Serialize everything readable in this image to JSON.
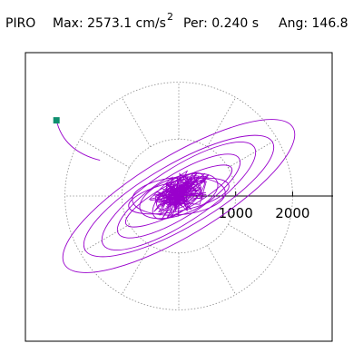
{
  "header": {
    "station": "PIRO",
    "max_text": "Max: 2573.1 cm/s",
    "max_superscript": "2",
    "period_text": "Per:  0.240 s",
    "angle_text": "Ang: 146.8"
  },
  "chart_data": {
    "type": "scatter",
    "title": "",
    "xlabel": "",
    "ylabel": "",
    "xlim": [
      -2700,
      2700
    ],
    "ylim": [
      -2700,
      2700
    ],
    "units": "cm/s2",
    "max_value": 2573.1,
    "period_s": 0.24,
    "angle_deg": 146.8,
    "radial_ticks": [
      1000,
      2000
    ],
    "radial_tick_labels": [
      "1000",
      "2000"
    ],
    "grid": true,
    "grid_spokes_deg": [
      0,
      30,
      60,
      90,
      120,
      150,
      180,
      210,
      240,
      270,
      300,
      330
    ],
    "marker_point": {
      "x": -2150,
      "y": 1330
    },
    "orbit_series": {
      "name": "",
      "ellipses": [
        {
          "a": 2340,
          "b": 700,
          "rot_deg": -31
        },
        {
          "a": 1900,
          "b": 560,
          "rot_deg": -30
        },
        {
          "a": 1580,
          "b": 480,
          "rot_deg": -33
        },
        {
          "a": 1250,
          "b": 380,
          "rot_deg": -32
        },
        {
          "a": 1050,
          "b": 260,
          "rot_deg": -28
        },
        {
          "a": 900,
          "b": 260,
          "rot_deg": -12
        },
        {
          "a": 820,
          "b": 330,
          "rot_deg": -5
        },
        {
          "a": 720,
          "b": 330,
          "rot_deg": -20
        },
        {
          "a": 560,
          "b": 250,
          "rot_deg": -40
        },
        {
          "a": 420,
          "b": 200,
          "rot_deg": -25
        },
        {
          "a": 300,
          "b": 140,
          "rot_deg": -15
        },
        {
          "a": 200,
          "b": 100,
          "rot_deg": -35
        }
      ]
    },
    "colors": {
      "orbit": "#9900cc",
      "marker": "#0f8f6f",
      "grid": "#8a8a8a",
      "axis": "#000000",
      "frame": "#000000"
    }
  }
}
